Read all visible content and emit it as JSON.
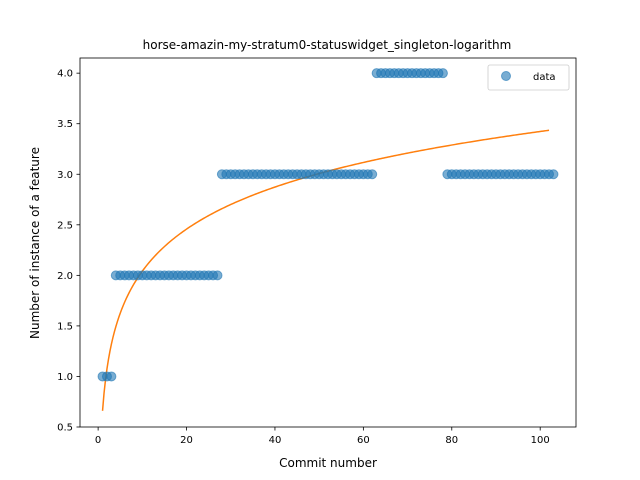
{
  "chart_data": {
    "type": "scatter",
    "title": "horse-amazin-my-stratum0-statuswidget_singleton-logarithm",
    "xlabel": "Commit number",
    "ylabel": "Number of instance of a feature",
    "xlim": [
      -4.1,
      108.1
    ],
    "ylim": [
      0.5,
      4.15
    ],
    "xticks": [
      0,
      20,
      40,
      60,
      80,
      100
    ],
    "yticks": [
      0.5,
      1.0,
      1.5,
      2.0,
      2.5,
      3.0,
      3.5,
      4.0
    ],
    "xtick_labels": [
      "0",
      "20",
      "40",
      "60",
      "80",
      "100"
    ],
    "ytick_labels": [
      "0.5",
      "1.0",
      "1.5",
      "2.0",
      "2.5",
      "3.0",
      "3.5",
      "4.0"
    ],
    "grid": false,
    "legend": {
      "position": "top-right",
      "entries": [
        "data"
      ]
    },
    "colors": {
      "data": "#1f77b4",
      "fit": "#ff7f0e"
    },
    "series": [
      {
        "name": "data",
        "kind": "scatter",
        "points": [
          {
            "x_from": 1,
            "x_to": 3,
            "y": 1
          },
          {
            "x_from": 4,
            "x_to": 27,
            "y": 2
          },
          {
            "x_from": 28,
            "x_to": 62,
            "y": 3
          },
          {
            "x_from": 63,
            "x_to": 78,
            "y": 4
          },
          {
            "x_from": 79,
            "x_to": 103,
            "y": 3
          }
        ]
      },
      {
        "kind": "line",
        "model": "logarithmic",
        "formula": "y = a + b * ln(x)",
        "a": 0.66,
        "b": 0.6,
        "x_range": [
          1,
          102
        ]
      }
    ]
  }
}
